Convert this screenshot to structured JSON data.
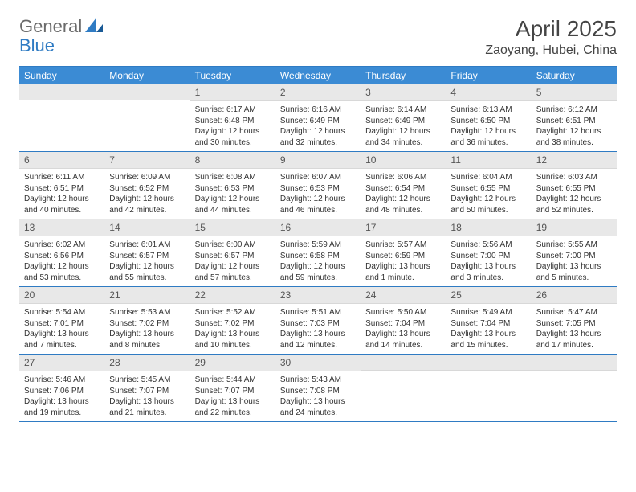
{
  "logo": {
    "text1": "General",
    "text2": "Blue"
  },
  "title": "April 2025",
  "location": "Zaoyang, Hubei, China",
  "weekdays": [
    "Sunday",
    "Monday",
    "Tuesday",
    "Wednesday",
    "Thursday",
    "Friday",
    "Saturday"
  ],
  "header_bg": "#3b8bd4",
  "border_color": "#2f7bc3",
  "daynum_bg": "#e8e8e8",
  "weeks": [
    [
      {
        "n": "",
        "lines": [
          "",
          "",
          "",
          ""
        ]
      },
      {
        "n": "",
        "lines": [
          "",
          "",
          "",
          ""
        ]
      },
      {
        "n": "1",
        "lines": [
          "Sunrise: 6:17 AM",
          "Sunset: 6:48 PM",
          "Daylight: 12 hours",
          "and 30 minutes."
        ]
      },
      {
        "n": "2",
        "lines": [
          "Sunrise: 6:16 AM",
          "Sunset: 6:49 PM",
          "Daylight: 12 hours",
          "and 32 minutes."
        ]
      },
      {
        "n": "3",
        "lines": [
          "Sunrise: 6:14 AM",
          "Sunset: 6:49 PM",
          "Daylight: 12 hours",
          "and 34 minutes."
        ]
      },
      {
        "n": "4",
        "lines": [
          "Sunrise: 6:13 AM",
          "Sunset: 6:50 PM",
          "Daylight: 12 hours",
          "and 36 minutes."
        ]
      },
      {
        "n": "5",
        "lines": [
          "Sunrise: 6:12 AM",
          "Sunset: 6:51 PM",
          "Daylight: 12 hours",
          "and 38 minutes."
        ]
      }
    ],
    [
      {
        "n": "6",
        "lines": [
          "Sunrise: 6:11 AM",
          "Sunset: 6:51 PM",
          "Daylight: 12 hours",
          "and 40 minutes."
        ]
      },
      {
        "n": "7",
        "lines": [
          "Sunrise: 6:09 AM",
          "Sunset: 6:52 PM",
          "Daylight: 12 hours",
          "and 42 minutes."
        ]
      },
      {
        "n": "8",
        "lines": [
          "Sunrise: 6:08 AM",
          "Sunset: 6:53 PM",
          "Daylight: 12 hours",
          "and 44 minutes."
        ]
      },
      {
        "n": "9",
        "lines": [
          "Sunrise: 6:07 AM",
          "Sunset: 6:53 PM",
          "Daylight: 12 hours",
          "and 46 minutes."
        ]
      },
      {
        "n": "10",
        "lines": [
          "Sunrise: 6:06 AM",
          "Sunset: 6:54 PM",
          "Daylight: 12 hours",
          "and 48 minutes."
        ]
      },
      {
        "n": "11",
        "lines": [
          "Sunrise: 6:04 AM",
          "Sunset: 6:55 PM",
          "Daylight: 12 hours",
          "and 50 minutes."
        ]
      },
      {
        "n": "12",
        "lines": [
          "Sunrise: 6:03 AM",
          "Sunset: 6:55 PM",
          "Daylight: 12 hours",
          "and 52 minutes."
        ]
      }
    ],
    [
      {
        "n": "13",
        "lines": [
          "Sunrise: 6:02 AM",
          "Sunset: 6:56 PM",
          "Daylight: 12 hours",
          "and 53 minutes."
        ]
      },
      {
        "n": "14",
        "lines": [
          "Sunrise: 6:01 AM",
          "Sunset: 6:57 PM",
          "Daylight: 12 hours",
          "and 55 minutes."
        ]
      },
      {
        "n": "15",
        "lines": [
          "Sunrise: 6:00 AM",
          "Sunset: 6:57 PM",
          "Daylight: 12 hours",
          "and 57 minutes."
        ]
      },
      {
        "n": "16",
        "lines": [
          "Sunrise: 5:59 AM",
          "Sunset: 6:58 PM",
          "Daylight: 12 hours",
          "and 59 minutes."
        ]
      },
      {
        "n": "17",
        "lines": [
          "Sunrise: 5:57 AM",
          "Sunset: 6:59 PM",
          "Daylight: 13 hours",
          "and 1 minute."
        ]
      },
      {
        "n": "18",
        "lines": [
          "Sunrise: 5:56 AM",
          "Sunset: 7:00 PM",
          "Daylight: 13 hours",
          "and 3 minutes."
        ]
      },
      {
        "n": "19",
        "lines": [
          "Sunrise: 5:55 AM",
          "Sunset: 7:00 PM",
          "Daylight: 13 hours",
          "and 5 minutes."
        ]
      }
    ],
    [
      {
        "n": "20",
        "lines": [
          "Sunrise: 5:54 AM",
          "Sunset: 7:01 PM",
          "Daylight: 13 hours",
          "and 7 minutes."
        ]
      },
      {
        "n": "21",
        "lines": [
          "Sunrise: 5:53 AM",
          "Sunset: 7:02 PM",
          "Daylight: 13 hours",
          "and 8 minutes."
        ]
      },
      {
        "n": "22",
        "lines": [
          "Sunrise: 5:52 AM",
          "Sunset: 7:02 PM",
          "Daylight: 13 hours",
          "and 10 minutes."
        ]
      },
      {
        "n": "23",
        "lines": [
          "Sunrise: 5:51 AM",
          "Sunset: 7:03 PM",
          "Daylight: 13 hours",
          "and 12 minutes."
        ]
      },
      {
        "n": "24",
        "lines": [
          "Sunrise: 5:50 AM",
          "Sunset: 7:04 PM",
          "Daylight: 13 hours",
          "and 14 minutes."
        ]
      },
      {
        "n": "25",
        "lines": [
          "Sunrise: 5:49 AM",
          "Sunset: 7:04 PM",
          "Daylight: 13 hours",
          "and 15 minutes."
        ]
      },
      {
        "n": "26",
        "lines": [
          "Sunrise: 5:47 AM",
          "Sunset: 7:05 PM",
          "Daylight: 13 hours",
          "and 17 minutes."
        ]
      }
    ],
    [
      {
        "n": "27",
        "lines": [
          "Sunrise: 5:46 AM",
          "Sunset: 7:06 PM",
          "Daylight: 13 hours",
          "and 19 minutes."
        ]
      },
      {
        "n": "28",
        "lines": [
          "Sunrise: 5:45 AM",
          "Sunset: 7:07 PM",
          "Daylight: 13 hours",
          "and 21 minutes."
        ]
      },
      {
        "n": "29",
        "lines": [
          "Sunrise: 5:44 AM",
          "Sunset: 7:07 PM",
          "Daylight: 13 hours",
          "and 22 minutes."
        ]
      },
      {
        "n": "30",
        "lines": [
          "Sunrise: 5:43 AM",
          "Sunset: 7:08 PM",
          "Daylight: 13 hours",
          "and 24 minutes."
        ]
      },
      {
        "n": "",
        "lines": [
          "",
          "",
          "",
          ""
        ]
      },
      {
        "n": "",
        "lines": [
          "",
          "",
          "",
          ""
        ]
      },
      {
        "n": "",
        "lines": [
          "",
          "",
          "",
          ""
        ]
      }
    ]
  ]
}
